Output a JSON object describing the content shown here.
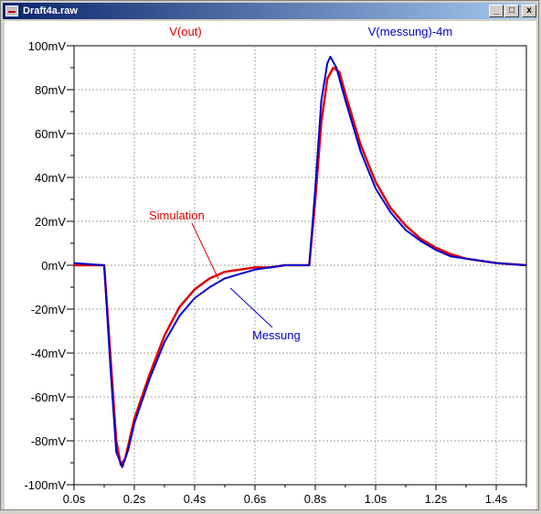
{
  "window": {
    "title": "Draft4a.raw",
    "buttons": {
      "minimize": "_",
      "maximize": "□",
      "close": "x"
    }
  },
  "trace_labels": {
    "left": "V(out)",
    "right": "V(messung)-4m"
  },
  "annotations": {
    "simulation": "Simulation",
    "messung": "Messung"
  },
  "colors": {
    "simulation": "#e00000",
    "messung": "#0000cc",
    "grid": "#a0a0a0",
    "axis": "#000000"
  },
  "chart_data": {
    "type": "line",
    "x_ticks": [
      0.0,
      0.2,
      0.4,
      0.6,
      0.8,
      1.0,
      1.2,
      1.4
    ],
    "x_tick_labels": [
      "0.0s",
      "0.2s",
      "0.4s",
      "0.6s",
      "0.8s",
      "1.0s",
      "1.2s",
      "1.4s"
    ],
    "y_ticks": [
      -100,
      -80,
      -60,
      -40,
      -20,
      0,
      20,
      40,
      60,
      80,
      100
    ],
    "y_tick_labels": [
      "-100mV",
      "-80mV",
      "-60mV",
      "-40mV",
      "-20mV",
      "0mV",
      "20mV",
      "40mV",
      "60mV",
      "80mV",
      "100mV"
    ],
    "xlim": [
      0,
      1.5
    ],
    "ylim": [
      -100,
      100
    ],
    "grid": true,
    "series": [
      {
        "name": "V(out)",
        "x": [
          0,
          0.1,
          0.12,
          0.14,
          0.155,
          0.17,
          0.2,
          0.25,
          0.3,
          0.35,
          0.4,
          0.45,
          0.5,
          0.55,
          0.6,
          0.65,
          0.7,
          0.78,
          0.8,
          0.82,
          0.84,
          0.86,
          0.88,
          0.9,
          0.95,
          1.0,
          1.05,
          1.1,
          1.15,
          1.2,
          1.25,
          1.3,
          1.4,
          1.5
        ],
        "y": [
          0,
          0,
          -40,
          -80,
          -91,
          -88,
          -70,
          -50,
          -32,
          -19,
          -11,
          -6,
          -3,
          -2,
          -1,
          -1,
          0,
          0,
          30,
          65,
          85,
          90,
          88,
          78,
          55,
          38,
          26,
          18,
          12,
          8,
          5,
          3,
          1,
          0
        ]
      },
      {
        "name": "V(messung)-4m",
        "x": [
          0,
          0.1,
          0.12,
          0.14,
          0.16,
          0.18,
          0.2,
          0.25,
          0.3,
          0.35,
          0.4,
          0.45,
          0.5,
          0.55,
          0.6,
          0.65,
          0.7,
          0.78,
          0.8,
          0.82,
          0.84,
          0.85,
          0.87,
          0.9,
          0.95,
          1.0,
          1.05,
          1.1,
          1.15,
          1.2,
          1.25,
          1.3,
          1.4,
          1.5
        ],
        "y": [
          1,
          0,
          -45,
          -85,
          -92,
          -84,
          -72,
          -52,
          -35,
          -23,
          -15,
          -10,
          -6,
          -4,
          -2,
          -1,
          0,
          0,
          35,
          75,
          92,
          95,
          90,
          75,
          52,
          35,
          24,
          16,
          11,
          7,
          4,
          3,
          1,
          0
        ]
      }
    ]
  }
}
